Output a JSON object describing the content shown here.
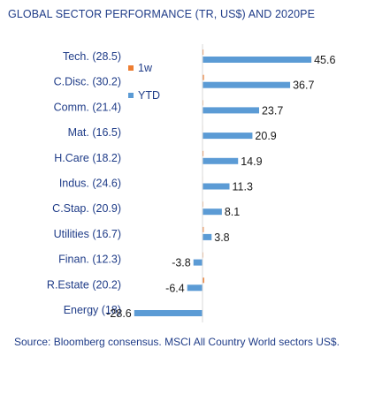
{
  "title": "GLOBAL SECTOR PERFORMANCE (TR, US$) AND 2020PE",
  "source": "Source: Bloomberg consensus. MSCI All Country World sectors US$.",
  "chart_data": {
    "type": "bar",
    "orientation": "horizontal",
    "title": "GLOBAL SECTOR PERFORMANCE (TR, US$) AND 2020PE",
    "categories": [
      "Tech. (28.5)",
      "C.Disc. (30.2)",
      "Comm. (21.4)",
      "Mat. (16.5)",
      "H.Care (18.2)",
      "Indus. (24.6)",
      "C.Stap. (20.9)",
      "Utilities (16.7)",
      "Finan. (12.3)",
      "R.Estate (20.2)",
      "Energy (18)"
    ],
    "series": [
      {
        "name": "1w",
        "color": "#ed7d31",
        "values": [
          0.4,
          0.6,
          0.3,
          0.2,
          0.4,
          0.2,
          0.3,
          0.5,
          0.3,
          0.7,
          0.0
        ]
      },
      {
        "name": "YTD",
        "color": "#5b9bd5",
        "values": [
          45.6,
          36.7,
          23.7,
          20.9,
          14.9,
          11.3,
          8.1,
          3.8,
          -3.8,
          -6.4,
          -28.6
        ]
      }
    ],
    "data_labels": [
      "45.6",
      "36.7",
      "23.7",
      "20.9",
      "14.9",
      "11.3",
      "8.1",
      "3.8",
      "-3.8",
      "-6.4",
      "-28.6"
    ],
    "legend_position": "left inside plot",
    "grid": false
  }
}
